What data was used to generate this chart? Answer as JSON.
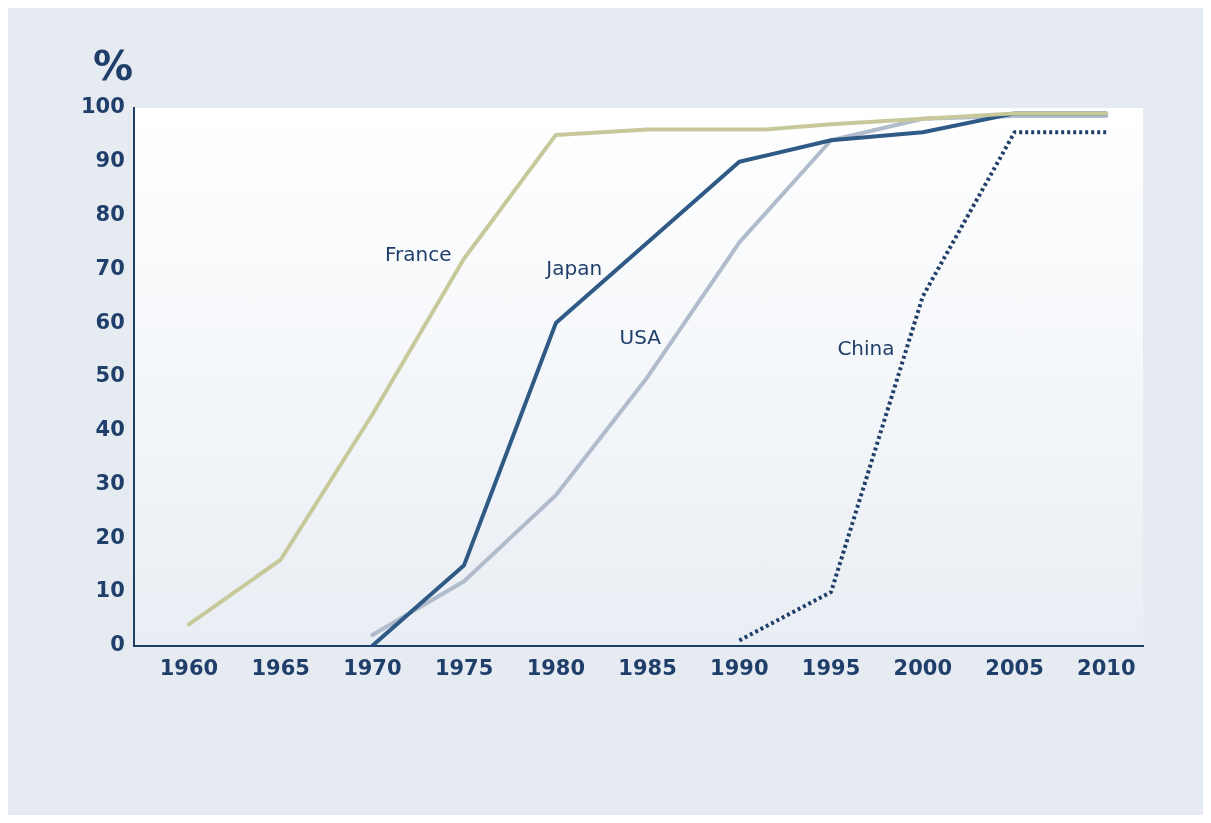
{
  "chart_data": {
    "type": "line",
    "ylabel": "%",
    "xlim": [
      1957,
      2012
    ],
    "xticks": [
      1960,
      1965,
      1970,
      1975,
      1980,
      1985,
      1990,
      1995,
      2000,
      2005,
      2010
    ],
    "ylim": [
      0,
      100
    ],
    "yticks": [
      0,
      10,
      20,
      30,
      40,
      50,
      60,
      70,
      80,
      90,
      100
    ],
    "grid": false,
    "legend": false,
    "marker": "none",
    "series": [
      {
        "name": "France",
        "color": "#c8c99b",
        "x": [
          1960,
          1965,
          1970,
          1975,
          1980,
          1985,
          1991.4,
          1995,
          2000,
          2005,
          2010
        ],
        "values": [
          4,
          16,
          43,
          72,
          95,
          96,
          96,
          97,
          98,
          99,
          99
        ]
      },
      {
        "name": "Japan",
        "color": "#2f5a85",
        "x": [
          1970,
          1975,
          1980,
          1990,
          1995,
          2000,
          2005,
          2010
        ],
        "values": [
          0,
          15,
          60,
          90,
          94,
          95.5,
          99,
          99
        ]
      },
      {
        "name": "USA",
        "color": "#b0bccb",
        "x": [
          1970,
          1975,
          1980,
          1985,
          1990,
          1995,
          2000,
          2005,
          2010
        ],
        "values": [
          2,
          12,
          28,
          50,
          75,
          94,
          98,
          98.5,
          98.5
        ]
      },
      {
        "name": "China",
        "color": "#1f3f6a",
        "line_style": "dotted",
        "x": [
          1990,
          1995,
          2000,
          2005,
          2010
        ],
        "values": [
          1,
          10,
          65,
          95.5,
          95.5
        ]
      }
    ]
  }
}
